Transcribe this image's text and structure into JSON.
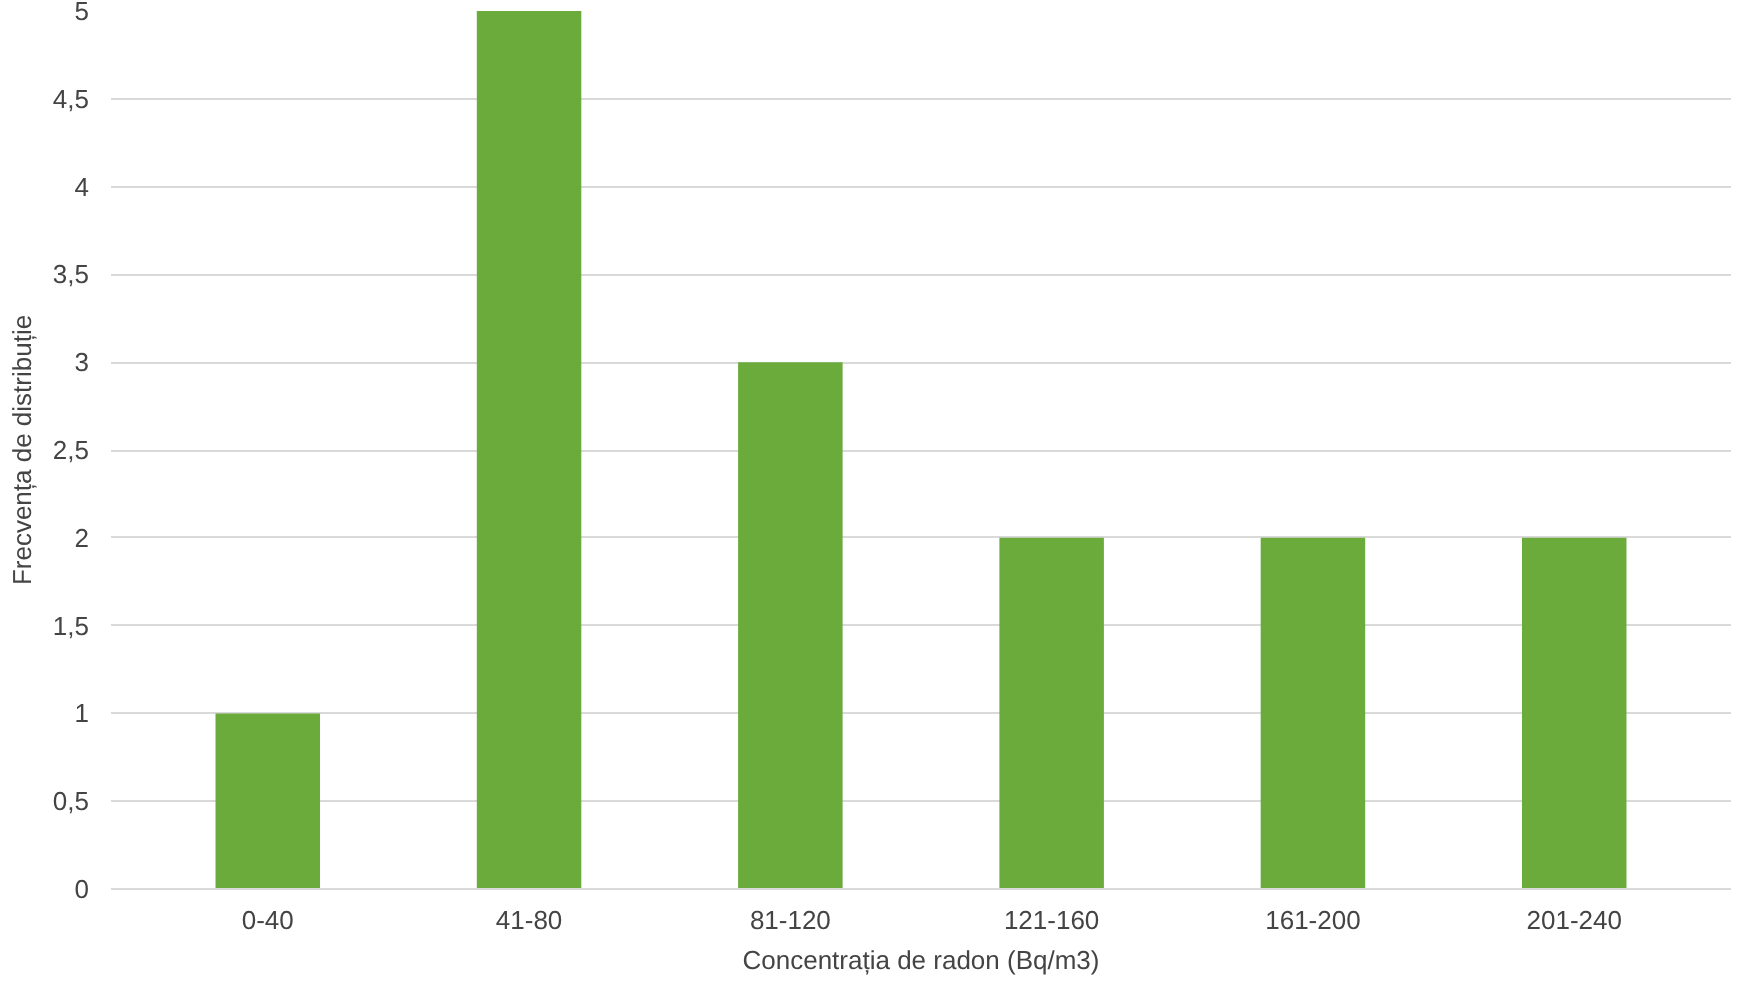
{
  "chart_data": {
    "type": "bar",
    "xlabel": "Concentrația de radon (Bq/m3)",
    "ylabel": "Frecvența de distribuție",
    "categories": [
      "0-40",
      "41-80",
      "81-120",
      "121-160",
      "161-200",
      "201-240"
    ],
    "values": [
      1,
      5,
      3,
      2,
      2,
      2
    ],
    "color": "#6aab3c",
    "ylim": [
      0,
      5
    ],
    "yticks": [
      0,
      {
        "value": 0.5,
        "label": "0,5"
      },
      1,
      {
        "value": 1.5,
        "label": "1,5"
      },
      2,
      {
        "value": 2.5,
        "label": "2,5"
      },
      3,
      {
        "value": 3.5,
        "label": "3,5"
      },
      4,
      {
        "value": 4.5,
        "label": "4,5"
      },
      5
    ],
    "grid": "y"
  }
}
